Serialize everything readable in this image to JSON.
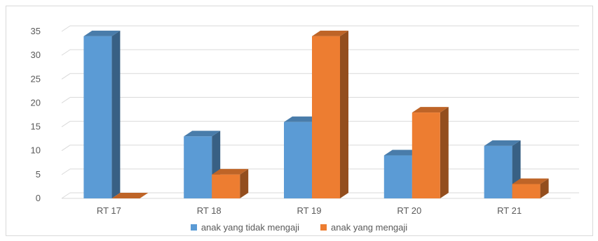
{
  "chart_data": {
    "type": "bar",
    "categories": [
      "RT 17",
      "RT 18",
      "RT 19",
      "RT 20",
      "RT 21"
    ],
    "series": [
      {
        "name": "anak yang tidak mengaji",
        "values": [
          34,
          13,
          16,
          9,
          11
        ],
        "color": "#5B9BD5"
      },
      {
        "name": "anak yang mengaji",
        "values": [
          0,
          5,
          34,
          18,
          3
        ],
        "color": "#ED7D31"
      }
    ],
    "y_ticks": [
      "0",
      "5",
      "10",
      "15",
      "20",
      "25",
      "30",
      "35"
    ],
    "ylim": [
      0,
      35
    ],
    "grid": true,
    "legend_position": "bottom",
    "style": "3d-column"
  }
}
